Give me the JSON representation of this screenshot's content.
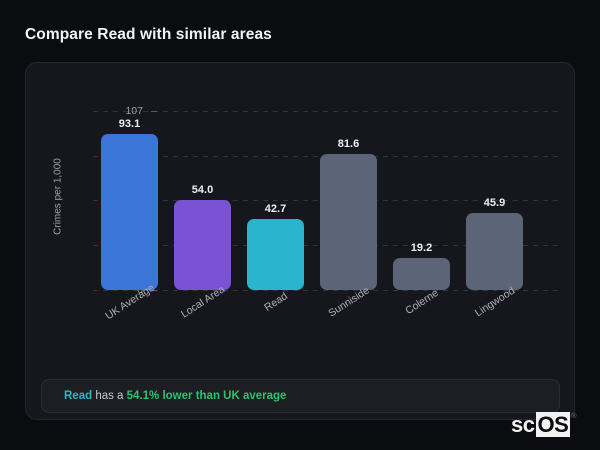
{
  "title": "Compare Read with similar areas",
  "chart_data": {
    "type": "bar",
    "categories": [
      "UK Average",
      "Local Area",
      "Read",
      "Sunniside",
      "Colerne",
      "Lingwood"
    ],
    "values": [
      93.1,
      54.0,
      42.7,
      81.6,
      19.2,
      45.9
    ],
    "bar_colors": [
      "#3b75d8",
      "#7a52d4",
      "#29b5cd",
      "#5b6577",
      "#5b6577",
      "#5b6577"
    ],
    "title": "",
    "xlabel": "",
    "ylabel": "Crimes per 1,000",
    "yticks": [
      0,
      27,
      54,
      80,
      107
    ],
    "ylim": [
      0,
      107
    ],
    "grid": "dashed-horizontal",
    "legend": "none"
  },
  "note": {
    "area_label": "Read",
    "connector": " has a ",
    "highlight": "54.1% lower than UK average"
  },
  "logo": {
    "prefix": "sc",
    "boxed": "OS",
    "registered": "®"
  },
  "colors": {
    "page_background": "#0b0c0f",
    "card_background": "#16171c",
    "note_background": "#1c1e23",
    "accent_teal": "#2cb9c4",
    "accent_green": "#2bc46e",
    "axis_text": "#9ca0a8"
  }
}
